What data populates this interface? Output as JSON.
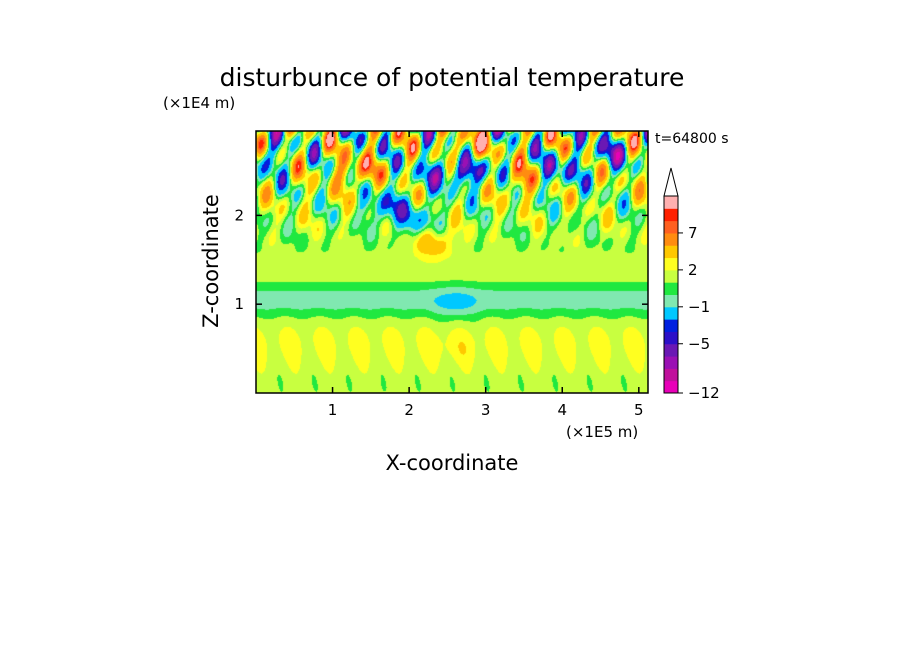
{
  "chart_data": {
    "type": "heatmap",
    "title": "disturbunce of potential temperature",
    "time_label": "t=64800 s",
    "xlabel": "X-coordinate",
    "ylabel": "Z-coordinate",
    "x_unit": "(×1E5 m)",
    "y_unit": "(×1E4 m)",
    "xlim": [
      0,
      5.12
    ],
    "ylim": [
      0,
      2.95
    ],
    "x_ticks": [
      "1",
      "2",
      "3",
      "4",
      "5"
    ],
    "x_tick_values": [
      1,
      2,
      3,
      4,
      5
    ],
    "y_ticks": [
      "1",
      "2"
    ],
    "y_tick_values": [
      1,
      2
    ],
    "colorbar": {
      "levels": [
        -12,
        -10,
        -8,
        -7,
        -5,
        -4,
        -3,
        -1,
        0,
        1,
        2,
        3,
        5,
        7,
        8,
        9,
        11
      ],
      "colors": [
        "#e800b8",
        "#c0109c",
        "#9a10b4",
        "#6a18b4",
        "#2c10c8",
        "#0020e0",
        "#00c8ff",
        "#80e8b0",
        "#20e840",
        "#c8ff40",
        "#ffff20",
        "#ffc800",
        "#ff8c10",
        "#ff6020",
        "#ff2000",
        "#ffb0b0"
      ],
      "tick_labels": [
        "-12",
        "-5",
        "-1",
        "2",
        "7"
      ],
      "tick_values": [
        -12,
        -5,
        -1,
        2,
        7
      ],
      "extend": "max"
    },
    "field_features": [
      {
        "x": 1.3,
        "z": 2.5,
        "value": 9
      },
      {
        "x": 1.7,
        "z": 2.1,
        "value": -6
      },
      {
        "x": 2.1,
        "z": 1.95,
        "value": -5
      },
      {
        "x": 2.4,
        "z": 2.5,
        "value": -7
      },
      {
        "x": 2.8,
        "z": 2.5,
        "value": -8
      },
      {
        "x": 2.75,
        "z": 2.75,
        "value": 9
      },
      {
        "x": 2.3,
        "z": 1.7,
        "value": 7
      },
      {
        "x": 3.5,
        "z": 2.4,
        "value": 8
      },
      {
        "x": 3.9,
        "z": 2.5,
        "value": -7
      },
      {
        "x": 4.6,
        "z": 2.7,
        "value": -6
      },
      {
        "x": 0.05,
        "z": 2.65,
        "value": -6
      },
      {
        "x": 2.6,
        "z": 1.0,
        "value": -1
      },
      {
        "x": 2.6,
        "z": 0.5,
        "value": 2
      },
      {
        "x": 2.6,
        "z": 1.3,
        "value": 1
      }
    ]
  }
}
